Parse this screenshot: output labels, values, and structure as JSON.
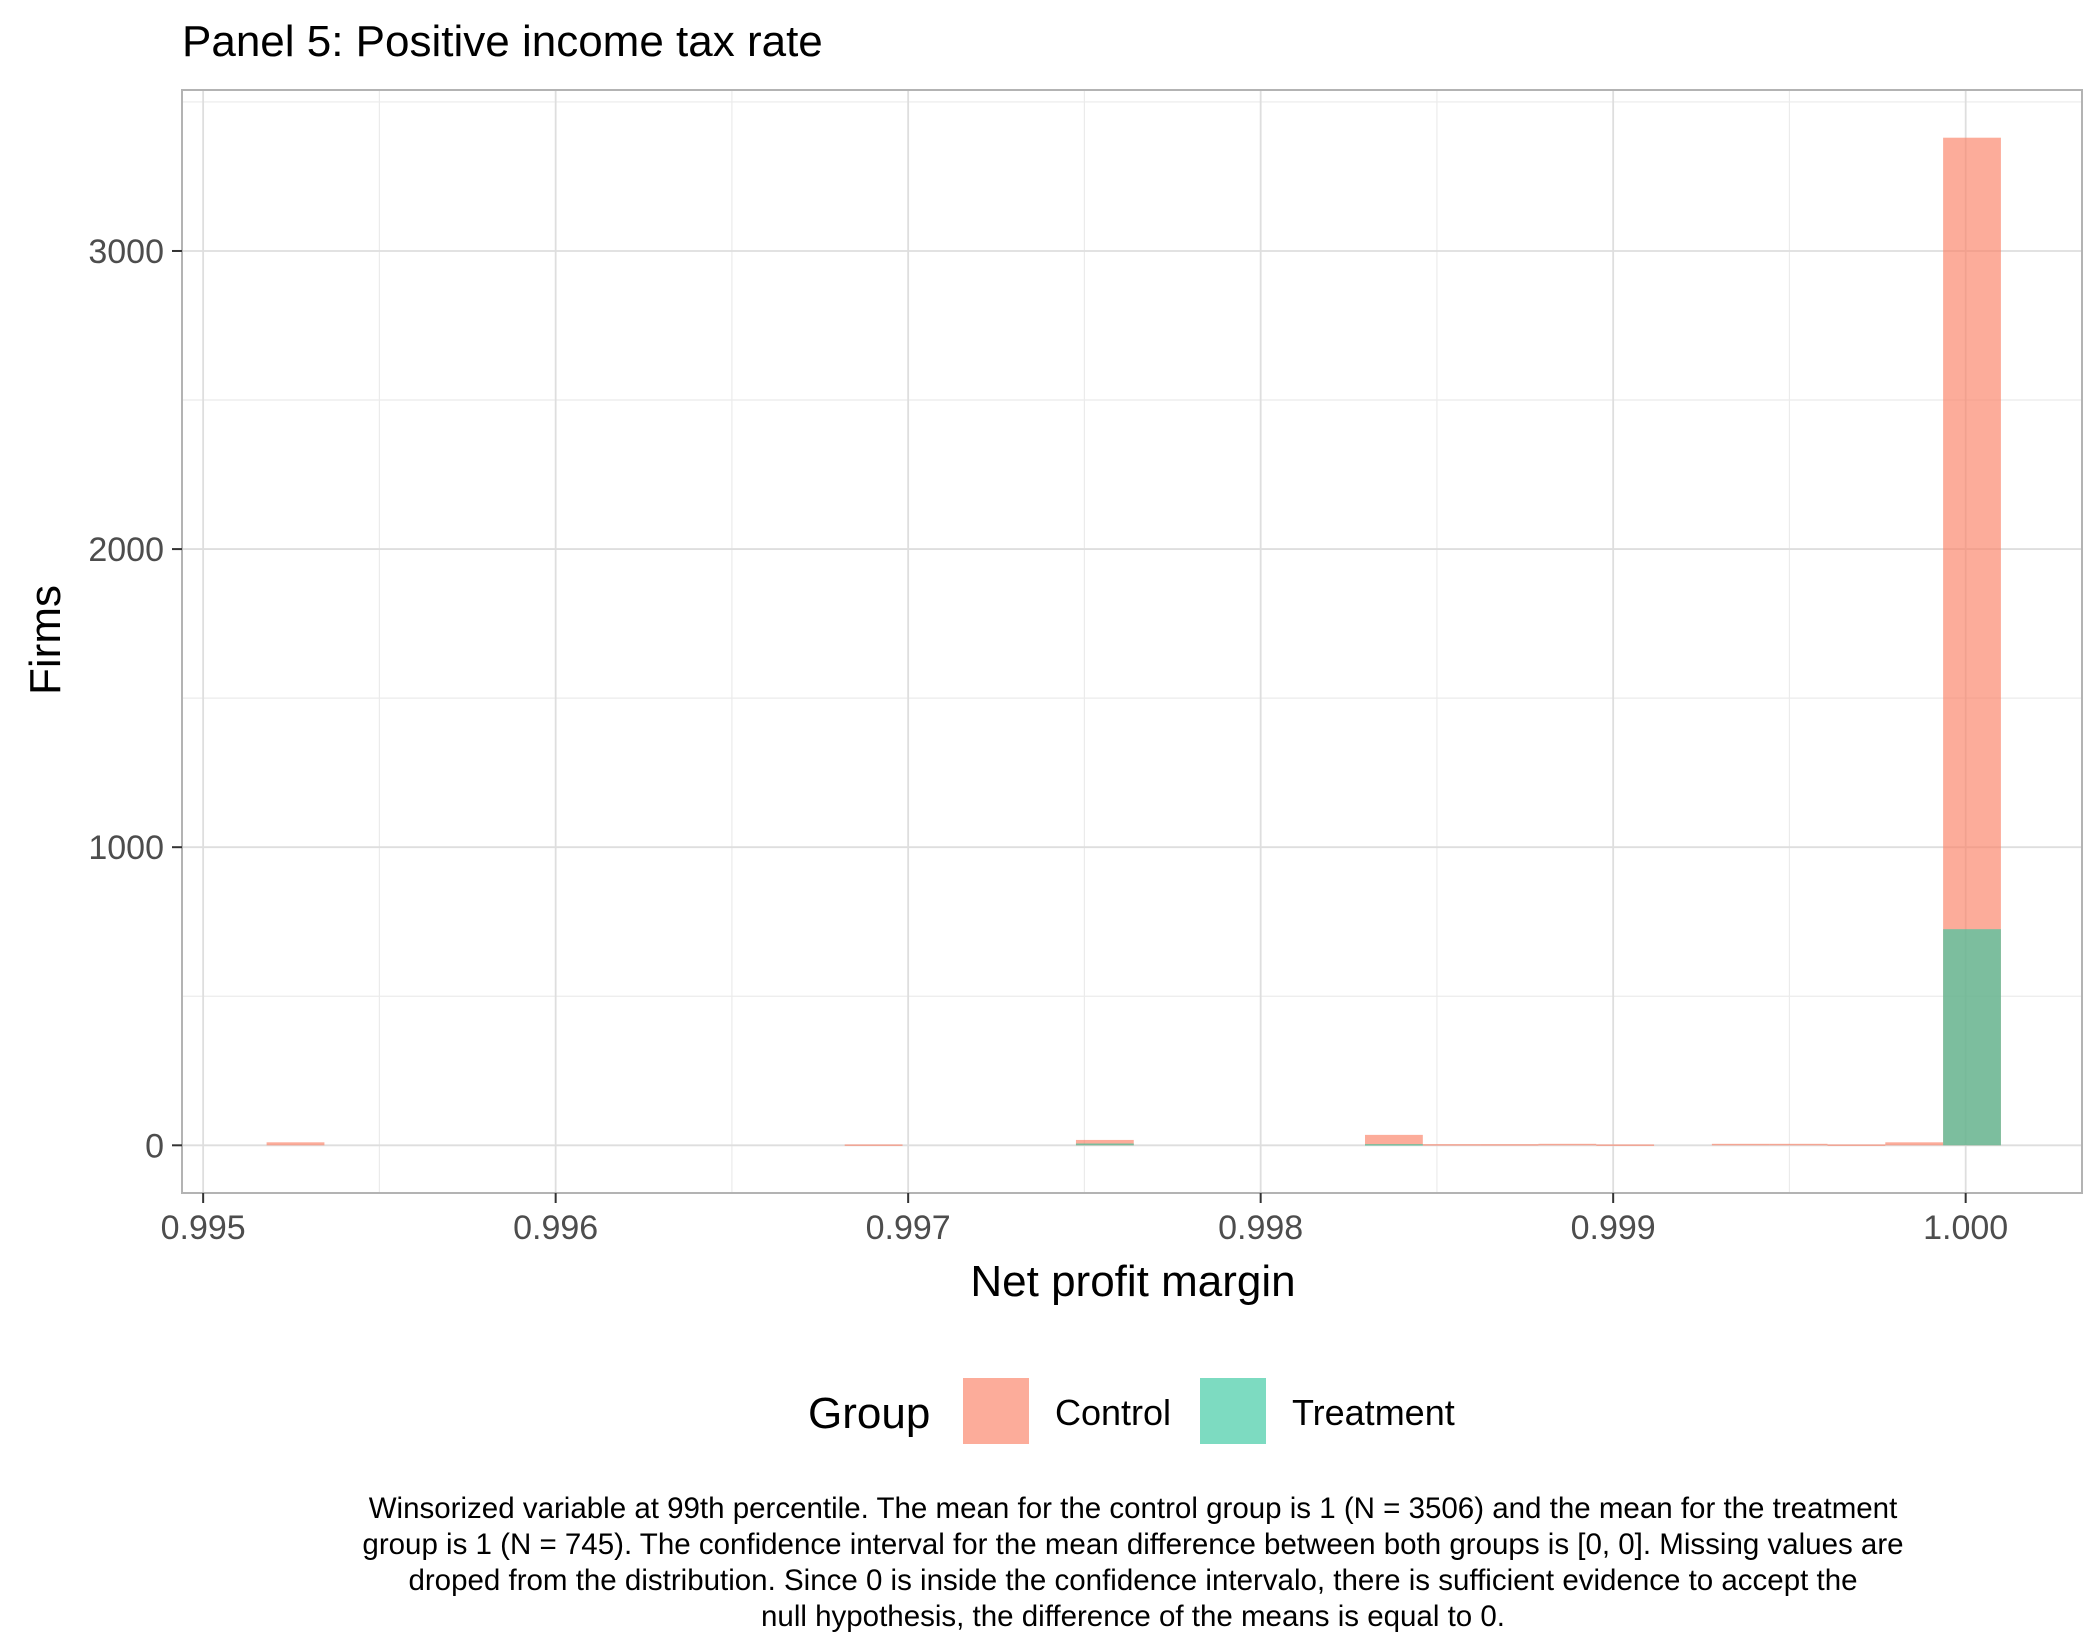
{
  "chart_data": {
    "type": "bar",
    "title": "Panel 5: Positive income tax rate",
    "xlabel": "Net profit margin",
    "ylabel": "Firms",
    "xlim": [
      0.99494,
      1.00033
    ],
    "ylim": [
      -160,
      3540
    ],
    "x_ticks": [
      "0.995",
      "0.996",
      "0.997",
      "0.998",
      "0.999",
      "1.000"
    ],
    "x_tick_values": [
      0.995,
      0.996,
      0.997,
      0.998,
      0.999,
      1.0
    ],
    "y_ticks": [
      "0",
      "1000",
      "2000",
      "3000"
    ],
    "y_tick_values": [
      0,
      1000,
      2000,
      3000
    ],
    "bin_width": 0.000164,
    "series": [
      {
        "name": "Control",
        "color": "#fa8064",
        "bins": [
          {
            "x": 0.995262,
            "value": 10
          },
          {
            "x": 0.996902,
            "value": 3
          },
          {
            "x": 0.997558,
            "value": 18
          },
          {
            "x": 0.998378,
            "value": 35
          },
          {
            "x": 0.998542,
            "value": 4
          },
          {
            "x": 0.998706,
            "value": 4
          },
          {
            "x": 0.99887,
            "value": 5
          },
          {
            "x": 0.999034,
            "value": 3
          },
          {
            "x": 0.999362,
            "value": 5
          },
          {
            "x": 0.999526,
            "value": 5
          },
          {
            "x": 0.99969,
            "value": 3
          },
          {
            "x": 0.999854,
            "value": 10
          },
          {
            "x": 1.000018,
            "value": 3380
          }
        ]
      },
      {
        "name": "Treatment",
        "color": "#37c8a0",
        "bins": [
          {
            "x": 0.997558,
            "value": 6
          },
          {
            "x": 0.998378,
            "value": 4
          },
          {
            "x": 1.000018,
            "value": 725
          }
        ]
      }
    ],
    "legend": {
      "title": "Group",
      "position": "bottom",
      "items": [
        {
          "label": "Control",
          "color": "#fa8064"
        },
        {
          "label": "Treatment",
          "color": "#37c8a0"
        }
      ]
    },
    "grid": true,
    "caption": [
      "Winsorized variable at 99th percentile. The mean for the control group is 1 (N = 3506) and the mean for the treatment",
      "group is 1 (N = 745). The confidence interval for the mean difference between both groups is [0, 0]. Missing values are",
      "droped from the distribution. Since 0 is inside the confidence intervalo, there is sufficient evidence to accept the",
      "null hypothesis, the difference of the means is equal to 0."
    ]
  }
}
